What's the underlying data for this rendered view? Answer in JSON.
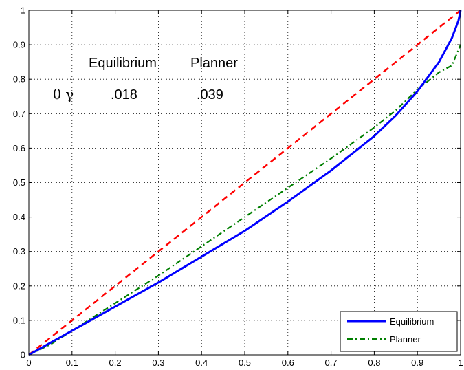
{
  "chart_data": {
    "type": "line",
    "title": "",
    "xlabel": "",
    "ylabel": "",
    "xlim": [
      0,
      1
    ],
    "ylim": [
      0,
      1
    ],
    "grid": true,
    "legend_position": "bottom-right",
    "xticks": [
      0,
      0.1,
      0.2,
      0.3,
      0.4,
      0.5,
      0.6,
      0.7,
      0.8,
      0.9,
      1
    ],
    "yticks": [
      0,
      0.1,
      0.2,
      0.3,
      0.4,
      0.5,
      0.6,
      0.7,
      0.8,
      0.9,
      1
    ],
    "xtick_labels": [
      "0",
      "0.1",
      "0.2",
      "0.3",
      "0.4",
      "0.5",
      "0.6",
      "0.7",
      "0.8",
      "0.9",
      "1"
    ],
    "ytick_labels": [
      "0",
      "0.1",
      "0.2",
      "0.3",
      "0.4",
      "0.5",
      "0.6",
      "0.7",
      "0.8",
      "0.9",
      "1"
    ],
    "series": [
      {
        "name": "Equilibrium",
        "color": "#0000ff",
        "style": "solid",
        "in_legend": true,
        "x": [
          0,
          0.05,
          0.1,
          0.2,
          0.3,
          0.4,
          0.5,
          0.6,
          0.7,
          0.8,
          0.85,
          0.9,
          0.95,
          0.98,
          0.995,
          1
        ],
        "y": [
          0,
          0.035,
          0.07,
          0.14,
          0.21,
          0.285,
          0.36,
          0.445,
          0.535,
          0.635,
          0.695,
          0.765,
          0.85,
          0.92,
          0.97,
          1
        ]
      },
      {
        "name": "Planner",
        "color": "#007f00",
        "style": "dashdot",
        "in_legend": true,
        "x": [
          0,
          0.05,
          0.1,
          0.2,
          0.3,
          0.4,
          0.5,
          0.6,
          0.7,
          0.8,
          0.85,
          0.9,
          0.95,
          0.98,
          1
        ],
        "y": [
          0,
          0.03,
          0.07,
          0.15,
          0.23,
          0.315,
          0.4,
          0.485,
          0.57,
          0.66,
          0.71,
          0.77,
          0.82,
          0.84,
          0.9
        ]
      },
      {
        "name": "",
        "color": "#ff0000",
        "style": "dashed",
        "in_legend": false,
        "x": [
          0,
          1
        ],
        "y": [
          0,
          1
        ]
      }
    ],
    "legend": [
      "Equilibrium",
      "Planner"
    ],
    "annotations": {
      "header_equilibrium": "Equilibrium",
      "header_planner": "Planner",
      "row_label": "θ γ",
      "equilibrium_value": ".018",
      "planner_value": ".039"
    }
  }
}
